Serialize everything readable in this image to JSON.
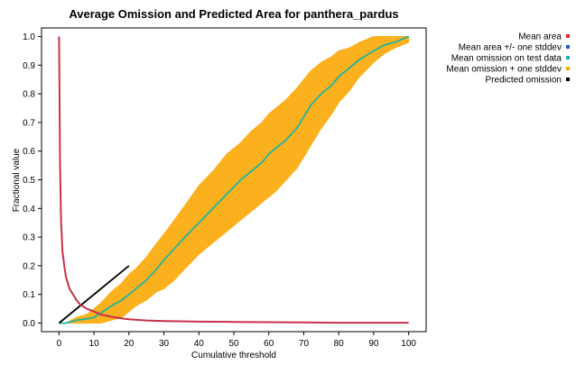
{
  "chart_data": {
    "type": "line",
    "title": "Average Omission and Predicted Area for panthera_pardus",
    "xlabel": "Cumulative threshold",
    "ylabel": "Fractional value",
    "xlim": [
      -5,
      105
    ],
    "ylim": [
      -0.03,
      1.03
    ],
    "x_ticks": [
      0,
      10,
      20,
      30,
      40,
      50,
      60,
      70,
      80,
      90,
      100
    ],
    "y_ticks": [
      0.0,
      0.1,
      0.2,
      0.3,
      0.4,
      0.5,
      0.6,
      0.7,
      0.8,
      0.9,
      1.0
    ],
    "x_tick_labels": [
      "0",
      "10",
      "20",
      "30",
      "40",
      "50",
      "60",
      "70",
      "80",
      "90",
      "100"
    ],
    "y_tick_labels": [
      "0.0",
      "0.1",
      "0.2",
      "0.3",
      "0.4",
      "0.5",
      "0.6",
      "0.7",
      "0.8",
      "0.9",
      "1.0"
    ],
    "grid": false,
    "legend_position": "right",
    "legend": [
      {
        "label": "Mean area",
        "color": "#e8242c"
      },
      {
        "label": "Mean area +/- one stddev",
        "color": "#1e5cc8"
      },
      {
        "label": "Mean omission on test data",
        "color": "#20b4a0"
      },
      {
        "label": "Mean omission +  one stddev",
        "color": "#f5a800"
      },
      {
        "label": "Predicted omission",
        "color": "#000000"
      }
    ],
    "series": [
      {
        "name": "Mean omission +  one stddev",
        "kind": "band",
        "color": "#fbb01e",
        "x": [
          2,
          5,
          8,
          10,
          12,
          15,
          18,
          20,
          22,
          25,
          28,
          30,
          33,
          36,
          40,
          44,
          48,
          52,
          55,
          58,
          60,
          62,
          65,
          68,
          70,
          72,
          75,
          78,
          80,
          83,
          86,
          90,
          93,
          96,
          100
        ],
        "upper": [
          0.0,
          0.02,
          0.03,
          0.05,
          0.07,
          0.11,
          0.14,
          0.17,
          0.19,
          0.23,
          0.28,
          0.31,
          0.36,
          0.41,
          0.48,
          0.53,
          0.59,
          0.63,
          0.67,
          0.7,
          0.73,
          0.75,
          0.78,
          0.82,
          0.85,
          0.88,
          0.91,
          0.93,
          0.95,
          0.96,
          0.98,
          1.0,
          1.0,
          1.0,
          1.0
        ],
        "lower": [
          0.0,
          0.0,
          0.0,
          0.0,
          0.0,
          0.01,
          0.02,
          0.04,
          0.06,
          0.08,
          0.11,
          0.12,
          0.15,
          0.19,
          0.24,
          0.28,
          0.32,
          0.36,
          0.39,
          0.42,
          0.44,
          0.46,
          0.5,
          0.54,
          0.58,
          0.62,
          0.68,
          0.73,
          0.77,
          0.81,
          0.86,
          0.91,
          0.94,
          0.96,
          0.98
        ]
      },
      {
        "name": "Mean omission on test data",
        "kind": "line",
        "color": "#20b4a0",
        "x": [
          0,
          2,
          5,
          8,
          10,
          12,
          15,
          18,
          20,
          22,
          25,
          28,
          30,
          33,
          36,
          40,
          44,
          48,
          52,
          55,
          58,
          60,
          62,
          65,
          68,
          70,
          72,
          75,
          78,
          80,
          83,
          86,
          90,
          93,
          96,
          100
        ],
        "y": [
          0.0,
          0.0,
          0.01,
          0.015,
          0.02,
          0.035,
          0.06,
          0.08,
          0.1,
          0.12,
          0.15,
          0.19,
          0.22,
          0.26,
          0.3,
          0.35,
          0.4,
          0.45,
          0.5,
          0.53,
          0.56,
          0.59,
          0.61,
          0.64,
          0.68,
          0.72,
          0.76,
          0.8,
          0.83,
          0.86,
          0.89,
          0.92,
          0.95,
          0.97,
          0.98,
          1.0
        ]
      },
      {
        "name": "Predicted omission",
        "kind": "line",
        "color": "#000000",
        "x": [
          0,
          20
        ],
        "y": [
          0.0,
          0.2
        ]
      },
      {
        "name": "Mean area",
        "kind": "line",
        "color": "#c8304a",
        "x": [
          0,
          0.1,
          0.3,
          0.6,
          1,
          1.5,
          2,
          3,
          4,
          5,
          6,
          8,
          10,
          12,
          15,
          18,
          20,
          25,
          30,
          40,
          50,
          60,
          70,
          80,
          90,
          100
        ],
        "y": [
          1.0,
          0.85,
          0.55,
          0.35,
          0.25,
          0.2,
          0.16,
          0.12,
          0.1,
          0.08,
          0.065,
          0.05,
          0.04,
          0.03,
          0.022,
          0.016,
          0.013,
          0.009,
          0.007,
          0.005,
          0.004,
          0.003,
          0.002,
          0.001,
          0.001,
          0.001
        ]
      }
    ]
  }
}
